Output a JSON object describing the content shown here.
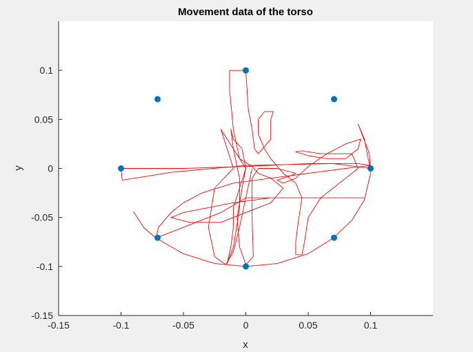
{
  "chart_data": {
    "type": "scatter",
    "title": "Movement data of the torso",
    "xlabel": "x",
    "ylabel": "y",
    "xlim": [
      -0.15,
      0.15
    ],
    "ylim": [
      -0.15,
      0.15
    ],
    "xticks": [
      "-0.15",
      "-0.1",
      "-0.05",
      "0",
      "0.05",
      "0.1"
    ],
    "yticks": [
      "-0.15",
      "-0.1",
      "-0.05",
      "0",
      "0.05",
      "0.1"
    ],
    "grid": false,
    "colors": {
      "points": "#0072bd",
      "trajectory": "#ff0000",
      "axes_bg": "#ffffff",
      "figure_bg": "#f0f0f0"
    },
    "points": [
      [
        0,
        0.1
      ],
      [
        0.0707,
        0.0707
      ],
      [
        0.1,
        0
      ],
      [
        0.0707,
        -0.0707
      ],
      [
        0,
        -0.1
      ],
      [
        -0.0707,
        -0.0707
      ],
      [
        -0.1,
        0
      ],
      [
        -0.0707,
        0.0707
      ]
    ],
    "trajectory": [
      [
        -0.09,
        -0.044
      ],
      [
        -0.082,
        -0.06
      ],
      [
        -0.072,
        -0.071
      ],
      [
        -0.05,
        -0.087
      ],
      [
        -0.025,
        -0.097
      ],
      [
        0.0,
        -0.1
      ],
      [
        0.025,
        -0.097
      ],
      [
        0.05,
        -0.087
      ],
      [
        0.07,
        -0.071
      ],
      [
        0.085,
        -0.053
      ],
      [
        0.095,
        -0.032
      ],
      [
        0.1,
        -0.005
      ],
      [
        0.099,
        0.015
      ],
      [
        0.094,
        0.032
      ],
      [
        0.09,
        0.045
      ],
      [
        0.095,
        0.03
      ],
      [
        0.098,
        0.01
      ],
      [
        0.1,
        0.0
      ],
      [
        0.07,
        0.005
      ],
      [
        0.0,
        0.003
      ],
      [
        -0.06,
        -0.004
      ],
      [
        -0.099,
        -0.012
      ],
      [
        -0.1,
        0.0
      ],
      [
        -0.05,
        0.0
      ],
      [
        0.0,
        0.002
      ],
      [
        0.05,
        0.005
      ],
      [
        0.09,
        0.005
      ],
      [
        0.1,
        0.003
      ],
      [
        0.08,
        0.0
      ],
      [
        0.05,
        -0.005
      ],
      [
        0.02,
        -0.01
      ],
      [
        -0.01,
        -0.015
      ],
      [
        -0.035,
        -0.025
      ],
      [
        -0.05,
        -0.035
      ],
      [
        -0.06,
        -0.045
      ],
      [
        -0.07,
        -0.06
      ],
      [
        -0.072,
        -0.071
      ],
      [
        -0.05,
        -0.06
      ],
      [
        -0.02,
        -0.045
      ],
      [
        0.0,
        -0.03
      ],
      [
        0.03,
        -0.03
      ],
      [
        0.06,
        -0.03
      ],
      [
        0.095,
        -0.03
      ],
      [
        0.06,
        -0.03
      ],
      [
        0.02,
        -0.03
      ],
      [
        -0.01,
        -0.035
      ],
      [
        -0.03,
        -0.04
      ],
      [
        -0.05,
        -0.045
      ],
      [
        -0.06,
        -0.05
      ],
      [
        -0.045,
        -0.055
      ],
      [
        -0.02,
        -0.055
      ],
      [
        0.0,
        -0.045
      ],
      [
        0.02,
        -0.035
      ],
      [
        0.03,
        -0.02
      ],
      [
        0.02,
        -0.01
      ],
      [
        0.01,
        -0.005
      ],
      [
        0.005,
        0.002
      ],
      [
        -0.005,
        0.01
      ],
      [
        -0.01,
        0.04
      ],
      [
        -0.013,
        0.08
      ],
      [
        -0.013,
        0.1
      ],
      [
        0.0,
        0.1
      ],
      [
        0.002,
        0.06
      ],
      [
        0.005,
        0.04
      ],
      [
        0.007,
        0.02
      ],
      [
        0.01,
        0.015
      ],
      [
        0.02,
        0.03
      ],
      [
        0.02,
        0.05
      ],
      [
        0.022,
        0.058
      ],
      [
        0.015,
        0.058
      ],
      [
        0.01,
        0.05
      ],
      [
        0.01,
        0.035
      ],
      [
        0.015,
        0.02
      ],
      [
        0.02,
        0.01
      ],
      [
        0.03,
        -0.005
      ],
      [
        0.04,
        -0.015
      ],
      [
        0.045,
        -0.03
      ],
      [
        0.042,
        -0.055
      ],
      [
        0.04,
        -0.075
      ],
      [
        0.04,
        -0.088
      ],
      [
        0.045,
        -0.088
      ],
      [
        0.047,
        -0.075
      ],
      [
        0.05,
        -0.05
      ],
      [
        0.06,
        -0.03
      ],
      [
        0.07,
        -0.02
      ],
      [
        0.08,
        -0.01
      ],
      [
        0.09,
        0.0
      ],
      [
        0.085,
        0.015
      ],
      [
        0.075,
        0.015
      ],
      [
        0.06,
        0.015
      ],
      [
        0.045,
        0.018
      ],
      [
        0.04,
        0.017
      ],
      [
        0.05,
        0.013
      ],
      [
        0.065,
        0.01
      ],
      [
        0.08,
        0.01
      ],
      [
        0.09,
        0.02
      ],
      [
        0.092,
        0.03
      ],
      [
        0.08,
        0.025
      ],
      [
        0.065,
        0.015
      ],
      [
        0.05,
        0.002
      ],
      [
        0.04,
        -0.01
      ],
      [
        0.03,
        -0.015
      ],
      [
        0.025,
        -0.012
      ],
      [
        0.035,
        -0.008
      ],
      [
        0.04,
        -0.005
      ],
      [
        0.025,
        0.0
      ],
      [
        0.01,
        0.0
      ],
      [
        0.005,
        -0.01
      ],
      [
        0.005,
        -0.05
      ],
      [
        0.006,
        -0.09
      ],
      [
        0.0,
        -0.098
      ],
      [
        -0.005,
        -0.08
      ],
      [
        -0.007,
        -0.05
      ],
      [
        -0.003,
        -0.02
      ],
      [
        0.0,
        0.0
      ],
      [
        -0.003,
        0.02
      ],
      [
        -0.01,
        0.03
      ],
      [
        -0.012,
        0.04
      ],
      [
        -0.01,
        0.02
      ],
      [
        -0.005,
        -0.01
      ],
      [
        -0.005,
        -0.04
      ],
      [
        -0.008,
        -0.065
      ],
      [
        -0.01,
        -0.08
      ],
      [
        -0.015,
        -0.097
      ],
      [
        -0.012,
        -0.08
      ],
      [
        -0.01,
        -0.06
      ],
      [
        -0.01,
        -0.04
      ],
      [
        -0.005,
        -0.02
      ],
      [
        0.0,
        0.0
      ],
      [
        -0.01,
        0.02
      ],
      [
        -0.02,
        0.04
      ],
      [
        -0.015,
        0.02
      ],
      [
        -0.01,
        0.0
      ],
      [
        -0.025,
        -0.02
      ],
      [
        -0.03,
        -0.06
      ],
      [
        -0.025,
        -0.09
      ],
      [
        -0.016,
        -0.098
      ],
      [
        -0.01,
        -0.085
      ],
      [
        -0.005,
        -0.06
      ],
      [
        0.0,
        -0.03
      ],
      [
        0.005,
        0.0
      ]
    ]
  }
}
